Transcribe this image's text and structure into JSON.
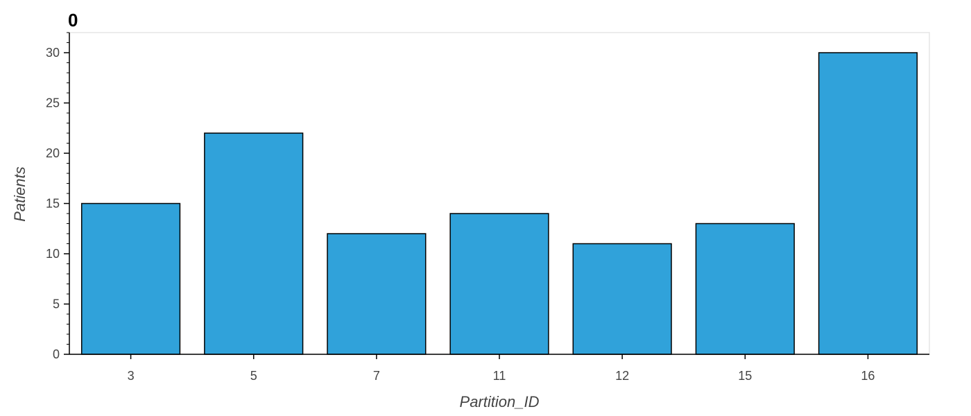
{
  "chart_data": {
    "type": "bar",
    "title": "0",
    "xlabel": "Partition_ID",
    "ylabel": "Patients",
    "categories": [
      "3",
      "5",
      "7",
      "11",
      "12",
      "15",
      "16"
    ],
    "values": [
      15,
      22,
      12,
      14,
      11,
      13,
      30
    ],
    "ylim": [
      0,
      32
    ],
    "yticks": [
      0,
      5,
      10,
      15,
      20,
      25,
      30
    ],
    "grid": false,
    "colors": {
      "bar_fill": "#30a2da",
      "bar_stroke": "#000000",
      "frame": "#e5e5e5",
      "axis": "#000000",
      "tick_text": "#444444"
    }
  }
}
